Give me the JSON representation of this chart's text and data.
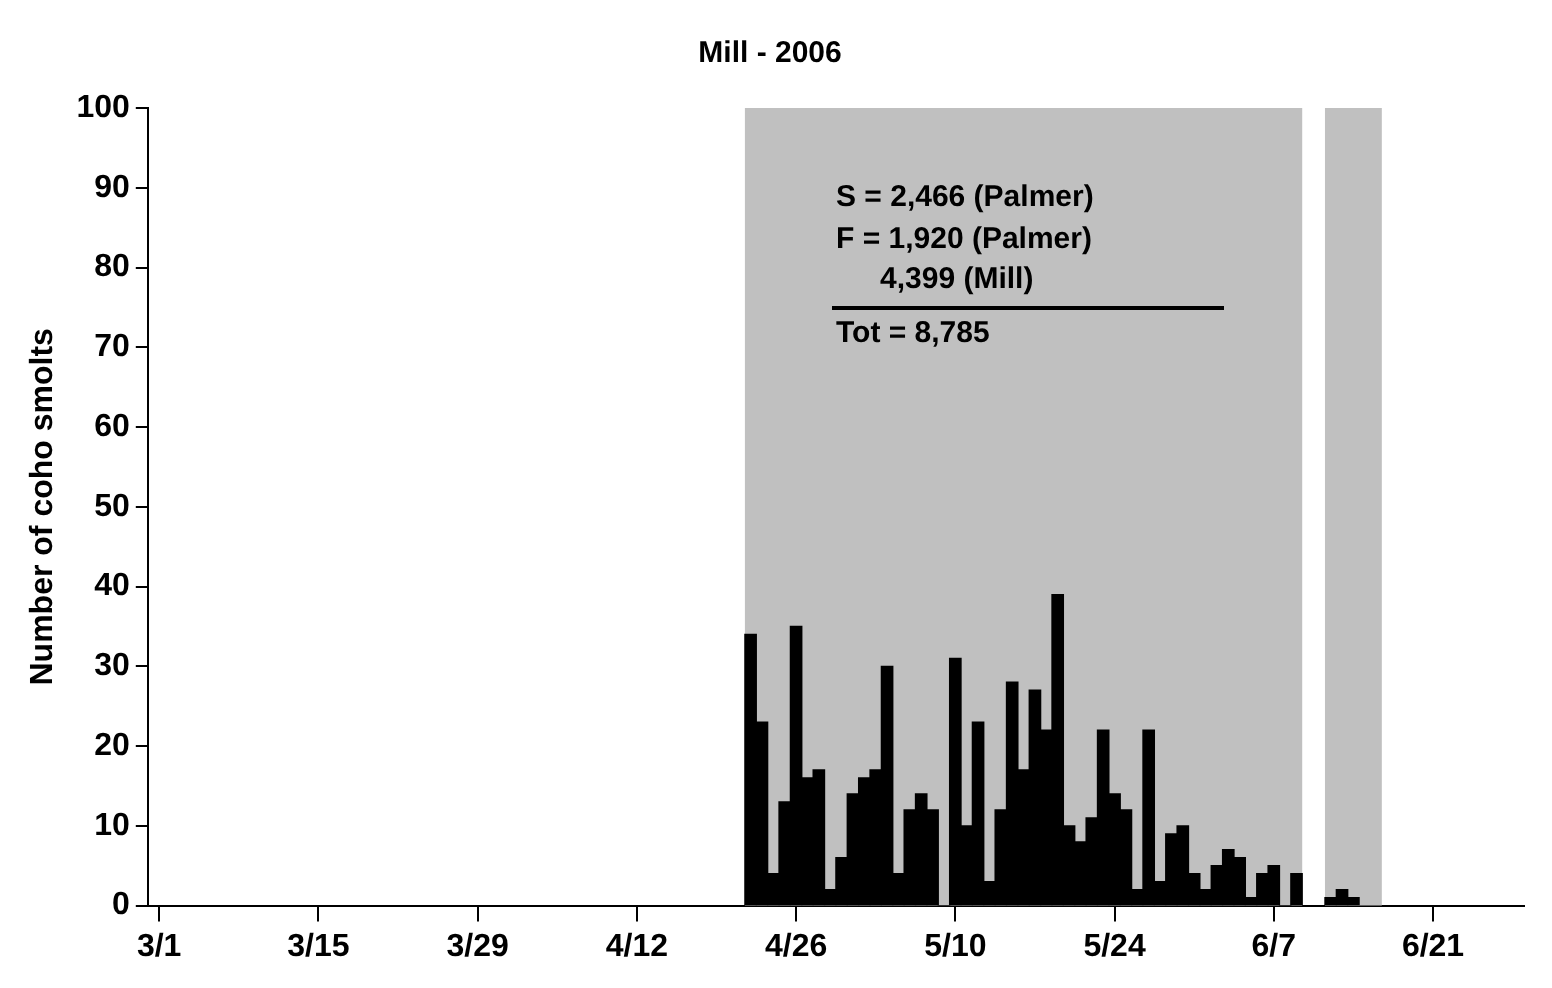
{
  "chart_data": {
    "type": "bar",
    "title": "Mill - 2006",
    "ylabel": "Number of coho smolts",
    "x": [
      "2006-04-22",
      "2006-04-23",
      "2006-04-24",
      "2006-04-25",
      "2006-04-26",
      "2006-04-27",
      "2006-04-28",
      "2006-04-29",
      "2006-04-30",
      "2006-05-01",
      "2006-05-02",
      "2006-05-03",
      "2006-05-04",
      "2006-05-05",
      "2006-05-06",
      "2006-05-07",
      "2006-05-08",
      "2006-05-09",
      "2006-05-10",
      "2006-05-11",
      "2006-05-12",
      "2006-05-13",
      "2006-05-14",
      "2006-05-15",
      "2006-05-16",
      "2006-05-17",
      "2006-05-18",
      "2006-05-19",
      "2006-05-20",
      "2006-05-21",
      "2006-05-22",
      "2006-05-23",
      "2006-05-24",
      "2006-05-25",
      "2006-05-26",
      "2006-05-27",
      "2006-05-28",
      "2006-05-29",
      "2006-05-30",
      "2006-05-31",
      "2006-06-01",
      "2006-06-02",
      "2006-06-03",
      "2006-06-04",
      "2006-06-05",
      "2006-06-06",
      "2006-06-07",
      "2006-06-08",
      "2006-06-09",
      "2006-06-12",
      "2006-06-13",
      "2006-06-14"
    ],
    "values": [
      34,
      23,
      4,
      13,
      35,
      16,
      17,
      2,
      6,
      14,
      16,
      17,
      30,
      4,
      12,
      14,
      12,
      0,
      31,
      10,
      23,
      3,
      12,
      28,
      17,
      27,
      22,
      39,
      10,
      8,
      11,
      22,
      14,
      12,
      2,
      22,
      3,
      9,
      10,
      4,
      2,
      5,
      7,
      6,
      1,
      4,
      5,
      0,
      4,
      1,
      2,
      1
    ],
    "color": "#000000",
    "xlim": [
      "2006-02-28",
      "2006-06-29"
    ],
    "xticks": [
      {
        "value": "2006-03-01",
        "label": "3/1"
      },
      {
        "value": "2006-03-15",
        "label": "3/15"
      },
      {
        "value": "2006-03-29",
        "label": "3/29"
      },
      {
        "value": "2006-04-12",
        "label": "4/12"
      },
      {
        "value": "2006-04-26",
        "label": "4/26"
      },
      {
        "value": "2006-05-10",
        "label": "5/10"
      },
      {
        "value": "2006-05-24",
        "label": "5/24"
      },
      {
        "value": "2006-06-07",
        "label": "6/7"
      },
      {
        "value": "2006-06-21",
        "label": "6/21"
      }
    ],
    "ylim": [
      0,
      100
    ],
    "yticks": [
      0,
      10,
      20,
      30,
      40,
      50,
      60,
      70,
      80,
      90,
      100
    ],
    "bands": [
      {
        "axis": "x",
        "from": "2006-04-21T12:00",
        "to": "2006-06-09T12:00",
        "color": "#c0c0c0"
      },
      {
        "axis": "x",
        "from": "2006-06-11T12:00",
        "to": "2006-06-16T12:00",
        "color": "#c0c0c0"
      }
    ],
    "annotations": [
      "S = 2,466 (Palmer)",
      "F = 1,920 (Palmer)",
      "4,399 (Mill)",
      "Tot = 8,785"
    ],
    "grid": false,
    "legend": false
  }
}
